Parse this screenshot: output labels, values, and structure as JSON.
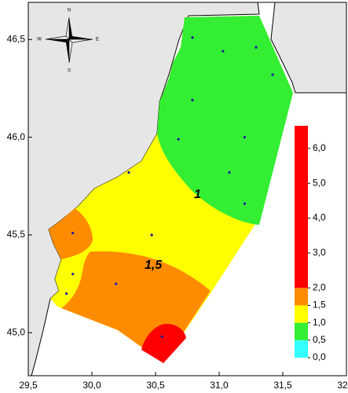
{
  "map": {
    "lon_range": [
      29.5,
      32.0
    ],
    "lat_range": [
      44.78,
      46.69
    ],
    "lon_ticks": [
      {
        "value": 29.5,
        "label": "29,5"
      },
      {
        "value": 30.0,
        "label": "30,0"
      },
      {
        "value": 30.5,
        "label": "30,5"
      },
      {
        "value": 31.0,
        "label": "31,0"
      },
      {
        "value": 31.5,
        "label": "31,5"
      },
      {
        "value": 32.0,
        "label": "32,0"
      }
    ],
    "lat_ticks": [
      {
        "value": 45.0,
        "label": "45,0"
      },
      {
        "value": 45.5,
        "label": "45,5"
      },
      {
        "value": 46.0,
        "label": "46,0"
      },
      {
        "value": 46.5,
        "label": "46,5"
      }
    ],
    "compass": {
      "north": "N",
      "south": "S",
      "west": "W",
      "east": "E"
    },
    "contour_labels": [
      "1",
      "1,5"
    ],
    "stations": {
      "lon": [
        30.79,
        31.03,
        31.29,
        31.42,
        30.79,
        30.68,
        31.2,
        30.29,
        31.08,
        31.2,
        29.85,
        30.47,
        29.85,
        30.19,
        29.8,
        30.55
      ],
      "lat": [
        46.51,
        46.44,
        46.46,
        46.32,
        46.19,
        45.99,
        46.0,
        45.82,
        45.82,
        45.66,
        45.51,
        45.5,
        45.3,
        45.25,
        45.2,
        44.98
      ],
      "color": "#1a1aa0"
    },
    "colorbar": {
      "range": [
        0,
        6.65
      ],
      "bands": [
        {
          "from": 0,
          "to": 0.5,
          "color": "#33ffff"
        },
        {
          "from": 0.5,
          "to": 1.0,
          "color": "#33ee33"
        },
        {
          "from": 1.0,
          "to": 1.5,
          "color": "#ffff00"
        },
        {
          "from": 1.5,
          "to": 2.0,
          "color": "#ff8c00"
        },
        {
          "from": 2.0,
          "to": 6.65,
          "color": "#ff0000"
        }
      ],
      "ticks": [
        {
          "value": 0,
          "label": "0,0"
        },
        {
          "value": 0.5,
          "label": "0,5"
        },
        {
          "value": 1,
          "label": "1,0"
        },
        {
          "value": 1.5,
          "label": "1,5"
        },
        {
          "value": 2,
          "label": "2,0"
        },
        {
          "value": 3,
          "label": "3,0"
        },
        {
          "value": 4,
          "label": "4,0"
        },
        {
          "value": 5,
          "label": "5,0"
        },
        {
          "value": 6,
          "label": "6,0"
        }
      ]
    }
  }
}
